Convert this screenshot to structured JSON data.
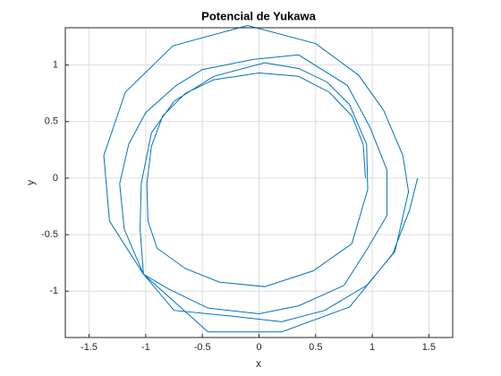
{
  "chart_data": {
    "type": "line",
    "title": "Potencial de Yukawa",
    "x_label": "x",
    "y_label": "y",
    "color": "#0072BD",
    "grid": true,
    "xlim": [
      -1.71,
      1.71
    ],
    "ylim": [
      -1.41,
      1.33
    ],
    "xticks": [
      -1.5,
      -1,
      -0.5,
      0,
      0.5,
      1,
      1.5
    ],
    "yticks": [
      -1,
      -0.5,
      0,
      0.5,
      1
    ],
    "x": [
      1.4,
      1.33,
      1.18,
      0.8,
      0.2,
      -0.45,
      -1.02,
      -1.32,
      -1.37,
      -1.18,
      -0.76,
      -0.1,
      0.5,
      0.88,
      1.1,
      1.27,
      1.32,
      1.2,
      0.95,
      0.58,
      0.2,
      -0.25,
      -0.75,
      -1.02,
      -1.19,
      -1.23,
      -1.15,
      -1.0,
      -0.73,
      -0.5,
      -0.05,
      0.35,
      0.78,
      0.98,
      1.13,
      1.13,
      0.96,
      0.75,
      0.35,
      0.0,
      -0.45,
      -0.8,
      -1.02,
      -1.05,
      -1.04,
      -0.95,
      -0.75,
      -0.4,
      0.05,
      0.35,
      0.6,
      0.8,
      0.95,
      0.96,
      0.82,
      0.48,
      0.05,
      -0.35,
      -0.65,
      -0.9,
      -0.98,
      -0.99,
      -0.95,
      -0.85,
      -0.65,
      -0.4,
      0.0,
      0.35,
      0.62,
      0.82,
      0.92,
      0.94
    ],
    "values": [
      0.0,
      -0.28,
      -0.67,
      -1.14,
      -1.36,
      -1.36,
      -0.85,
      -0.38,
      0.2,
      0.76,
      1.17,
      1.35,
      1.19,
      0.91,
      0.6,
      0.2,
      -0.12,
      -0.65,
      -0.95,
      -1.17,
      -1.27,
      -1.22,
      -1.17,
      -0.85,
      -0.45,
      -0.05,
      0.3,
      0.58,
      0.82,
      0.96,
      1.05,
      1.09,
      0.82,
      0.45,
      0.07,
      -0.33,
      -0.62,
      -0.95,
      -1.13,
      -1.2,
      -1.15,
      -0.98,
      -0.85,
      -0.45,
      -0.05,
      0.4,
      0.68,
      0.9,
      1.02,
      0.97,
      0.85,
      0.65,
      0.3,
      -0.1,
      -0.58,
      -0.82,
      -0.96,
      -0.92,
      -0.8,
      -0.62,
      -0.38,
      -0.05,
      0.28,
      0.55,
      0.75,
      0.87,
      0.93,
      0.9,
      0.76,
      0.55,
      0.3,
      0.0
    ]
  }
}
